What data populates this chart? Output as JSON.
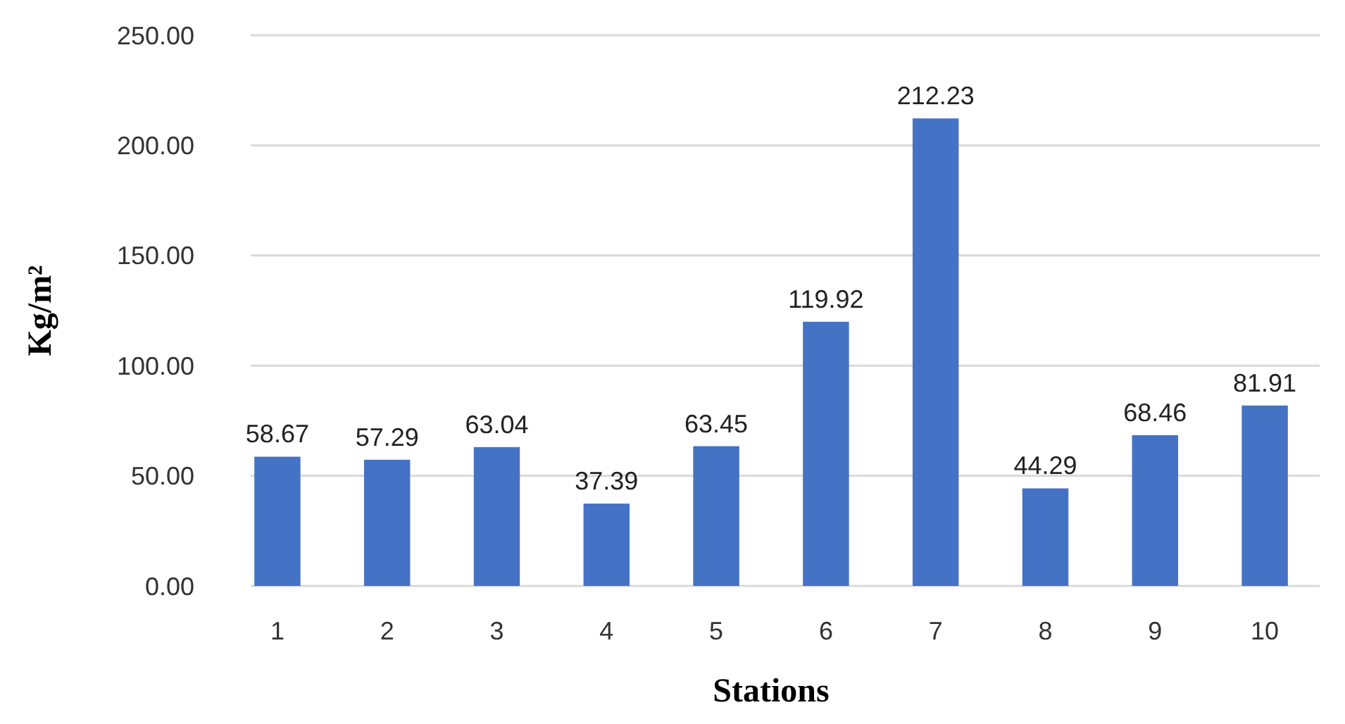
{
  "chart_data": {
    "type": "bar",
    "xlabel": "Stations",
    "ylabel": "Kg/m²",
    "categories": [
      "1",
      "2",
      "3",
      "4",
      "5",
      "6",
      "7",
      "8",
      "9",
      "10"
    ],
    "values": [
      58.67,
      57.29,
      63.04,
      37.39,
      63.45,
      119.92,
      212.23,
      44.29,
      68.46,
      81.91
    ],
    "color": "#4472c4",
    "ylim": [
      0,
      250
    ],
    "yticks": [
      {
        "value": 0,
        "label": "0.00"
      },
      {
        "value": 50,
        "label": "50.00"
      },
      {
        "value": 100,
        "label": "100.00"
      },
      {
        "value": 150,
        "label": "150.00"
      },
      {
        "value": 200,
        "label": "200.00"
      },
      {
        "value": 250,
        "label": "250.00"
      }
    ],
    "grid": "y",
    "data_labels": true
  }
}
